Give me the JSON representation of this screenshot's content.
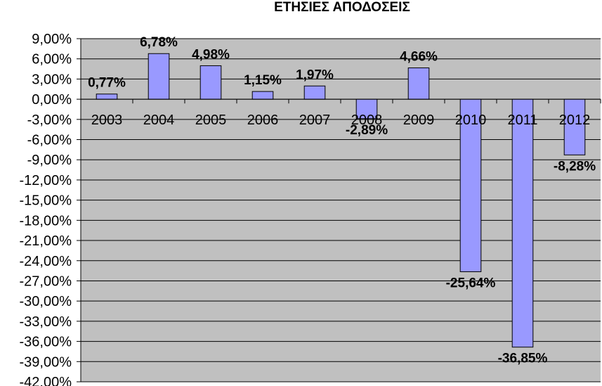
{
  "chart_data": {
    "type": "bar",
    "title": "ΕΤΗΣΙΕΣ ΑΠΟΔΟΣΕΙΣ",
    "xlabel": "",
    "ylabel": "",
    "categories": [
      "2003",
      "2004",
      "2005",
      "2006",
      "2007",
      "2008",
      "2009",
      "2010",
      "2011",
      "2012"
    ],
    "values": [
      0.77,
      6.78,
      4.98,
      1.15,
      1.97,
      -2.89,
      4.66,
      -25.64,
      -36.85,
      -8.28
    ],
    "data_labels": [
      "0,77%",
      "6,78%",
      "4,98%",
      "1,15%",
      "1,97%",
      "-2,89%",
      "4,66%",
      "-25,64%",
      "-36,85%",
      "-8,28%"
    ],
    "ylim": [
      -42,
      9
    ],
    "yticks": [
      9,
      6,
      3,
      0,
      -3,
      -6,
      -9,
      -12,
      -15,
      -18,
      -21,
      -24,
      -27,
      -30,
      -33,
      -36,
      -39,
      -42
    ],
    "ytick_labels": [
      "9,00%",
      "6,00%",
      "3,00%",
      "0,00%",
      "-3,00%",
      "-6,00%",
      "-9,00%",
      "-12,00%",
      "-15,00%",
      "-18,00%",
      "-21,00%",
      "-24,00%",
      "-27,00%",
      "-30,00%",
      "-33,00%",
      "-36,00%",
      "-39,00%",
      "-42,00%"
    ],
    "grid": true,
    "legend": "none",
    "colors": {
      "bar_fill": "#9999ff",
      "bar_stroke": "#000000",
      "plot_background": "#c0c0c0",
      "gridline": "#000000"
    }
  }
}
